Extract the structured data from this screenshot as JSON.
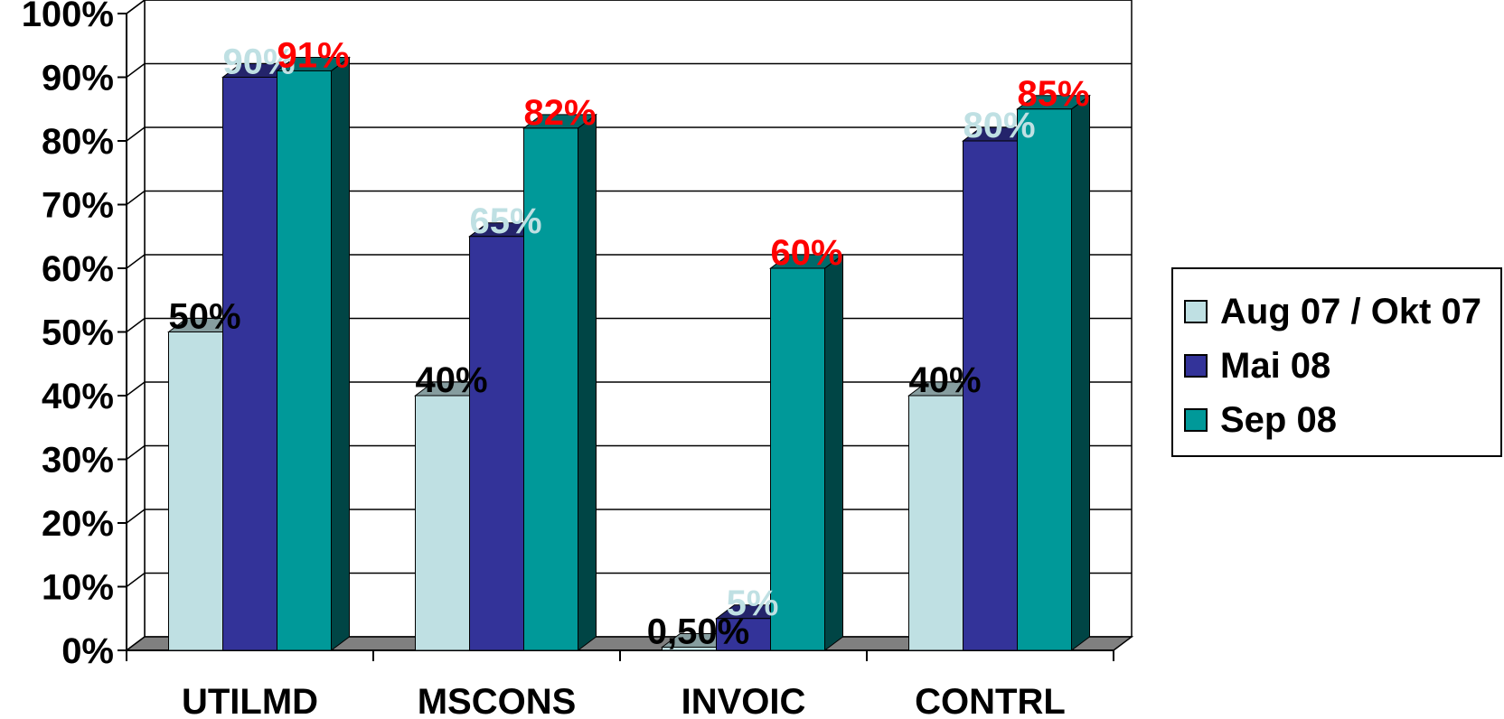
{
  "chart_data": {
    "type": "bar",
    "categories": [
      "UTILMD",
      "MSCONS",
      "INVOIC",
      "CONTRL"
    ],
    "series": [
      {
        "name": "Aug 07 / Okt 07",
        "color": "#bfe0e3",
        "label_color": "#000000",
        "values": [
          50,
          40,
          0.5,
          40
        ],
        "labels": [
          "50%",
          "40%",
          "0,50%",
          "40%"
        ]
      },
      {
        "name": "Mai 08",
        "color": "#333399",
        "label_color": "#bfe0e3",
        "values": [
          90,
          65,
          5,
          80
        ],
        "labels": [
          "90%",
          "65%",
          "5%",
          "80%"
        ]
      },
      {
        "name": "Sep 08",
        "color": "#009999",
        "label_color": "#ff0000",
        "values": [
          91,
          82,
          60,
          85
        ],
        "labels": [
          "91%",
          "82%",
          "60%",
          "85%"
        ]
      }
    ],
    "yticks": [
      "0%",
      "10%",
      "20%",
      "30%",
      "40%",
      "50%",
      "60%",
      "70%",
      "80%",
      "90%",
      "100%"
    ],
    "ylim": [
      0,
      100
    ],
    "grid": true,
    "legend_position": "right",
    "title": "",
    "xlabel": "",
    "ylabel": ""
  }
}
